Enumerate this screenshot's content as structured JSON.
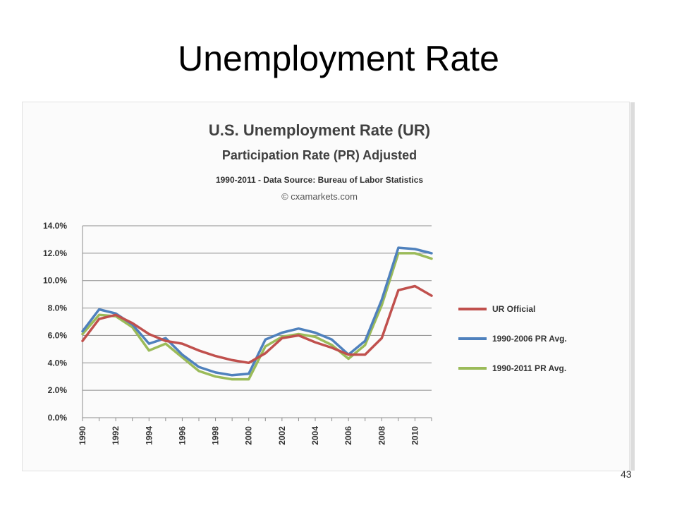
{
  "slide": {
    "title": "Unemployment Rate",
    "page_number": "43"
  },
  "chart_data": {
    "type": "line",
    "title": "U.S. Unemployment Rate (UR)",
    "subtitle": "Participation Rate (PR) Adjusted",
    "source_line": "1990-2011 - Data Source: Bureau of Labor Statistics",
    "copyright": "© cxamarkets.com",
    "ylim": [
      0,
      14
    ],
    "y_ticks": [
      "0.0%",
      "2.0%",
      "4.0%",
      "6.0%",
      "8.0%",
      "10.0%",
      "12.0%",
      "14.0%"
    ],
    "y_tick_values": [
      0,
      2,
      4,
      6,
      8,
      10,
      12,
      14
    ],
    "x": [
      1990,
      1991,
      1992,
      1993,
      1994,
      1995,
      1996,
      1997,
      1998,
      1999,
      2000,
      2001,
      2002,
      2003,
      2004,
      2005,
      2006,
      2007,
      2008,
      2009,
      2010,
      2011
    ],
    "x_tick_labels": [
      "1990",
      "1992",
      "1994",
      "1996",
      "1998",
      "2000",
      "2002",
      "2004",
      "2006",
      "2008",
      "2010"
    ],
    "grid": true,
    "legend_position": "right",
    "series": [
      {
        "name": "UR Official",
        "color": "#c0504d",
        "values": [
          5.6,
          7.2,
          7.5,
          6.9,
          6.1,
          5.6,
          5.4,
          4.9,
          4.5,
          4.2,
          4.0,
          4.7,
          5.8,
          6.0,
          5.5,
          5.1,
          4.6,
          4.6,
          5.8,
          9.3,
          9.6,
          8.9
        ]
      },
      {
        "name": "1990-2006 PR Avg.",
        "color": "#4f81bd",
        "values": [
          6.3,
          7.9,
          7.6,
          6.8,
          5.4,
          5.8,
          4.6,
          3.7,
          3.3,
          3.1,
          3.2,
          5.7,
          6.2,
          6.5,
          6.2,
          5.7,
          4.6,
          5.6,
          8.6,
          12.4,
          12.3,
          12.0
        ]
      },
      {
        "name": "1990-2011 PR Avg.",
        "color": "#9bbb59",
        "values": [
          6.1,
          7.5,
          7.4,
          6.6,
          4.9,
          5.4,
          4.4,
          3.4,
          3.0,
          2.8,
          2.8,
          5.2,
          5.9,
          6.1,
          5.9,
          5.3,
          4.3,
          5.3,
          8.2,
          12.0,
          12.0,
          11.6
        ]
      }
    ]
  }
}
